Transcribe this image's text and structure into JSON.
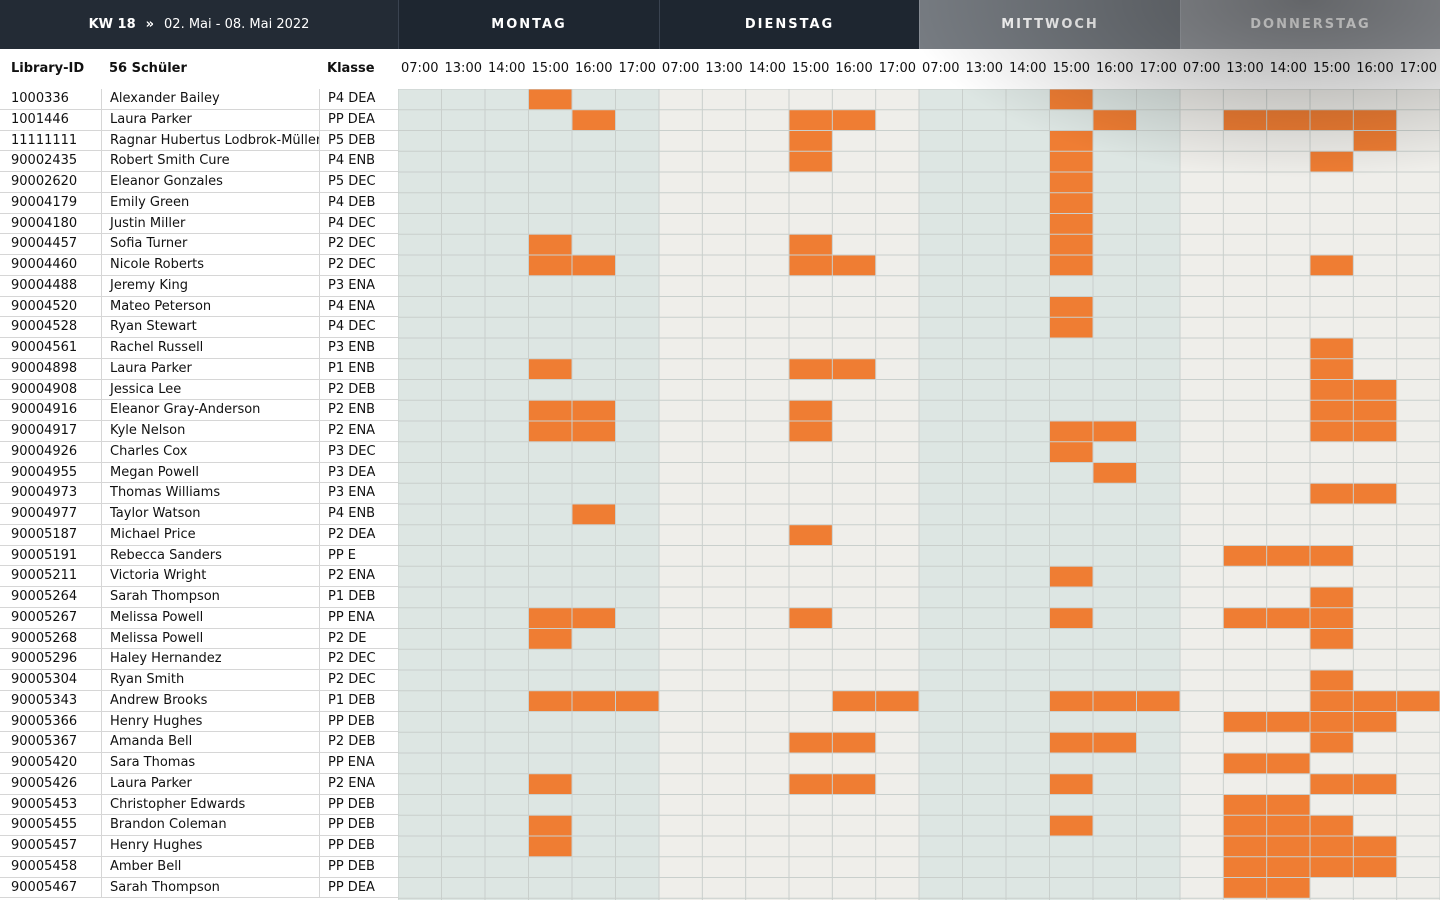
{
  "header": {
    "week": "KW 18",
    "separator": "»",
    "range": "02. Mai - 08. Mai 2022"
  },
  "days": [
    "MONTAG",
    "DIENSTAG",
    "MITTWOCH",
    "DONNERSTAG"
  ],
  "hours": [
    "07:00",
    "13:00",
    "14:00",
    "15:00",
    "16:00",
    "17:00"
  ],
  "columns": {
    "id": "Library-ID",
    "name": "56 Schüler",
    "class": "Klasse"
  },
  "colors": {
    "accent": "#ef7d33",
    "shaded_day": "#dde6e3",
    "plain_day": "#efeeea",
    "grid_line": "#c9cfcc",
    "header_bg": "#1e2630"
  },
  "students": [
    {
      "id": "1000336",
      "name": "Alexander Bailey",
      "cls": "P4 DEA",
      "slots": [
        [
          0,
          3
        ],
        [
          2,
          3
        ]
      ]
    },
    {
      "id": "1001446",
      "name": "Laura Parker",
      "cls": "PP DEA",
      "slots": [
        [
          0,
          4
        ],
        [
          1,
          3
        ],
        [
          1,
          4
        ],
        [
          2,
          4
        ],
        [
          3,
          1
        ],
        [
          3,
          2
        ],
        [
          3,
          3
        ],
        [
          3,
          4
        ]
      ]
    },
    {
      "id": "11111111",
      "name": "Ragnar Hubertus Lodbrok-Müller",
      "cls": "P5 DEB",
      "slots": [
        [
          1,
          3
        ],
        [
          2,
          3
        ],
        [
          3,
          4
        ]
      ]
    },
    {
      "id": "90002435",
      "name": "Robert Smith Cure",
      "cls": "P4 ENB",
      "slots": [
        [
          1,
          3
        ],
        [
          2,
          3
        ],
        [
          3,
          3
        ]
      ]
    },
    {
      "id": "90002620",
      "name": "Eleanor Gonzales",
      "cls": "P5 DEC",
      "slots": [
        [
          2,
          3
        ]
      ]
    },
    {
      "id": "90004179",
      "name": "Emily Green",
      "cls": "P4 DEB",
      "slots": [
        [
          2,
          3
        ]
      ]
    },
    {
      "id": "90004180",
      "name": "Justin Miller",
      "cls": "P4 DEC",
      "slots": [
        [
          2,
          3
        ]
      ]
    },
    {
      "id": "90004457",
      "name": "Sofia Turner",
      "cls": "P2 DEC",
      "slots": [
        [
          0,
          3
        ],
        [
          1,
          3
        ],
        [
          2,
          3
        ]
      ]
    },
    {
      "id": "90004460",
      "name": "Nicole Roberts",
      "cls": "P2 DEC",
      "slots": [
        [
          0,
          3
        ],
        [
          0,
          4
        ],
        [
          1,
          3
        ],
        [
          1,
          4
        ],
        [
          2,
          3
        ],
        [
          3,
          3
        ]
      ]
    },
    {
      "id": "90004488",
      "name": "Jeremy King",
      "cls": "P3 ENA",
      "slots": []
    },
    {
      "id": "90004520",
      "name": "Mateo Peterson",
      "cls": "P4 ENA",
      "slots": [
        [
          2,
          3
        ]
      ]
    },
    {
      "id": "90004528",
      "name": "Ryan Stewart",
      "cls": "P4 DEC",
      "slots": [
        [
          2,
          3
        ]
      ]
    },
    {
      "id": "90004561",
      "name": "Rachel Russell",
      "cls": "P3 ENB",
      "slots": [
        [
          3,
          3
        ]
      ]
    },
    {
      "id": "90004898",
      "name": "Laura Parker",
      "cls": "P1 ENB",
      "slots": [
        [
          0,
          3
        ],
        [
          1,
          3
        ],
        [
          1,
          4
        ],
        [
          3,
          3
        ]
      ]
    },
    {
      "id": "90004908",
      "name": "Jessica Lee",
      "cls": "P2 DEB",
      "slots": [
        [
          3,
          3
        ],
        [
          3,
          4
        ]
      ]
    },
    {
      "id": "90004916",
      "name": "Eleanor Gray-Anderson",
      "cls": "P2 ENB",
      "slots": [
        [
          0,
          3
        ],
        [
          0,
          4
        ],
        [
          1,
          3
        ],
        [
          3,
          3
        ],
        [
          3,
          4
        ]
      ]
    },
    {
      "id": "90004917",
      "name": "Kyle Nelson",
      "cls": "P2 ENA",
      "slots": [
        [
          0,
          3
        ],
        [
          0,
          4
        ],
        [
          1,
          3
        ],
        [
          2,
          3
        ],
        [
          2,
          4
        ],
        [
          3,
          3
        ],
        [
          3,
          4
        ]
      ]
    },
    {
      "id": "90004926",
      "name": "Charles Cox",
      "cls": "P3 DEC",
      "slots": [
        [
          2,
          3
        ]
      ]
    },
    {
      "id": "90004955",
      "name": "Megan Powell",
      "cls": "P3 DEA",
      "slots": [
        [
          2,
          4
        ]
      ]
    },
    {
      "id": "90004973",
      "name": "Thomas Williams",
      "cls": "P3 ENA",
      "slots": [
        [
          3,
          3
        ],
        [
          3,
          4
        ]
      ]
    },
    {
      "id": "90004977",
      "name": "Taylor Watson",
      "cls": "P4 ENB",
      "slots": [
        [
          0,
          4
        ]
      ]
    },
    {
      "id": "90005187",
      "name": "Michael Price",
      "cls": "P2 DEA",
      "slots": [
        [
          1,
          3
        ]
      ]
    },
    {
      "id": "90005191",
      "name": "Rebecca Sanders",
      "cls": "PP E",
      "slots": [
        [
          3,
          1
        ],
        [
          3,
          2
        ],
        [
          3,
          3
        ]
      ]
    },
    {
      "id": "90005211",
      "name": "Victoria Wright",
      "cls": "P2 ENA",
      "slots": [
        [
          2,
          3
        ]
      ]
    },
    {
      "id": "90005264",
      "name": "Sarah Thompson",
      "cls": "P1 DEB",
      "slots": [
        [
          3,
          3
        ]
      ]
    },
    {
      "id": "90005267",
      "name": "Melissa Powell",
      "cls": "PP ENA",
      "slots": [
        [
          0,
          3
        ],
        [
          0,
          4
        ],
        [
          1,
          3
        ],
        [
          2,
          3
        ],
        [
          3,
          1
        ],
        [
          3,
          2
        ],
        [
          3,
          3
        ]
      ]
    },
    {
      "id": "90005268",
      "name": "Melissa Powell",
      "cls": "P2 DE",
      "slots": [
        [
          0,
          3
        ],
        [
          3,
          3
        ]
      ]
    },
    {
      "id": "90005296",
      "name": "Haley Hernandez",
      "cls": "P2 DEC",
      "slots": []
    },
    {
      "id": "90005304",
      "name": "Ryan Smith",
      "cls": "P2 DEC",
      "slots": [
        [
          3,
          3
        ]
      ]
    },
    {
      "id": "90005343",
      "name": "Andrew Brooks",
      "cls": "P1 DEB",
      "slots": [
        [
          0,
          3
        ],
        [
          0,
          4
        ],
        [
          0,
          5
        ],
        [
          1,
          4
        ],
        [
          1,
          5
        ],
        [
          2,
          3
        ],
        [
          2,
          4
        ],
        [
          2,
          5
        ],
        [
          3,
          3
        ],
        [
          3,
          4
        ],
        [
          3,
          5
        ]
      ]
    },
    {
      "id": "90005366",
      "name": "Henry Hughes",
      "cls": "PP DEB",
      "slots": [
        [
          3,
          1
        ],
        [
          3,
          2
        ],
        [
          3,
          3
        ],
        [
          3,
          4
        ]
      ]
    },
    {
      "id": "90005367",
      "name": "Amanda Bell",
      "cls": "P2 DEB",
      "slots": [
        [
          1,
          3
        ],
        [
          1,
          4
        ],
        [
          2,
          3
        ],
        [
          2,
          4
        ],
        [
          3,
          3
        ]
      ]
    },
    {
      "id": "90005420",
      "name": "Sara Thomas",
      "cls": "PP ENA",
      "slots": [
        [
          3,
          1
        ],
        [
          3,
          2
        ]
      ]
    },
    {
      "id": "90005426",
      "name": "Laura Parker",
      "cls": "P2 ENA",
      "slots": [
        [
          0,
          3
        ],
        [
          1,
          3
        ],
        [
          1,
          4
        ],
        [
          2,
          3
        ],
        [
          3,
          3
        ],
        [
          3,
          4
        ]
      ]
    },
    {
      "id": "90005453",
      "name": "Christopher Edwards",
      "cls": "PP DEB",
      "slots": [
        [
          3,
          1
        ],
        [
          3,
          2
        ]
      ]
    },
    {
      "id": "90005455",
      "name": "Brandon Coleman",
      "cls": "PP DEB",
      "slots": [
        [
          0,
          3
        ],
        [
          2,
          3
        ],
        [
          3,
          1
        ],
        [
          3,
          2
        ],
        [
          3,
          3
        ]
      ]
    },
    {
      "id": "90005457",
      "name": "Henry Hughes",
      "cls": "PP DEB",
      "slots": [
        [
          0,
          3
        ],
        [
          3,
          1
        ],
        [
          3,
          2
        ],
        [
          3,
          3
        ],
        [
          3,
          4
        ]
      ]
    },
    {
      "id": "90005458",
      "name": "Amber Bell",
      "cls": "PP DEB",
      "slots": [
        [
          3,
          1
        ],
        [
          3,
          2
        ],
        [
          3,
          3
        ],
        [
          3,
          4
        ]
      ]
    },
    {
      "id": "90005467",
      "name": "Sarah Thompson",
      "cls": "PP DEA",
      "slots": [
        [
          3,
          1
        ],
        [
          3,
          2
        ]
      ]
    }
  ]
}
